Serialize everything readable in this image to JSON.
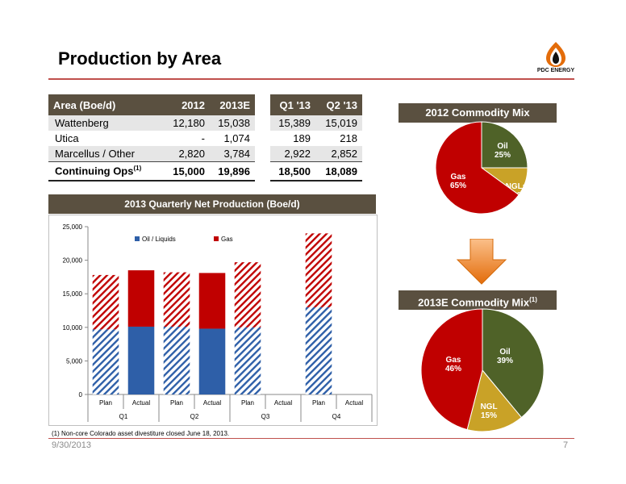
{
  "slide": {
    "title": "Production by Area",
    "logo_text": "PDC ENERGY",
    "footnote": "(1) Non-core Colorado asset divestiture closed June 18, 2013.",
    "date": "9/30/2013",
    "page": "7"
  },
  "table_annual": {
    "headers": [
      "Area (Boe/d)",
      "2012",
      "2013E"
    ],
    "rows": [
      [
        "Wattenberg",
        "12,180",
        "15,038"
      ],
      [
        "Utica",
        "-",
        "1,074"
      ],
      [
        "Marcellus / Other",
        "2,820",
        "3,784"
      ]
    ],
    "total": {
      "label": "Continuing Ops",
      "sup": "(1)",
      "v1": "15,000",
      "v2": "19,896"
    }
  },
  "table_quarterly": {
    "headers": [
      "Q1 '13",
      "Q2 '13"
    ],
    "rows": [
      [
        "15,389",
        "15,019"
      ],
      [
        "189",
        "218"
      ],
      [
        "2,922",
        "2,852"
      ]
    ],
    "total": {
      "v1": "18,500",
      "v2": "18,089"
    }
  },
  "chart_data": [
    {
      "type": "bar",
      "stacked": true,
      "title": "2013 Quarterly Net Production (Boe/d)",
      "categories": [
        "Plan",
        "Actual",
        "Plan",
        "Actual",
        "Plan",
        "Actual",
        "Plan",
        "Actual"
      ],
      "groups": [
        "Q1",
        "Q2",
        "Q3",
        "Q4"
      ],
      "series": [
        {
          "name": "Oil / Liquids",
          "color": "#2e5fa8",
          "values": [
            9700,
            10100,
            10100,
            9800,
            10000,
            0,
            13000,
            0
          ]
        },
        {
          "name": "Gas",
          "color": "#c00000",
          "values": [
            8100,
            8400,
            8100,
            8300,
            9700,
            0,
            11000,
            0
          ]
        }
      ],
      "pattern": [
        "hatched",
        "solid",
        "hatched",
        "solid",
        "hatched",
        "solid",
        "hatched",
        "solid"
      ],
      "ylim": [
        0,
        25000
      ],
      "yticks": [
        "0",
        "5,000",
        "10,000",
        "15,000",
        "20,000",
        "25,000"
      ],
      "legend": "top"
    },
    {
      "type": "pie",
      "title": "2012 Commodity Mix",
      "slices": [
        {
          "label": "Oil",
          "pct": "25%",
          "value": 25,
          "color": "#4f6228"
        },
        {
          "label": "NGLs",
          "pct": "10%",
          "value": 10,
          "color": "#c9a227"
        },
        {
          "label": "Gas",
          "pct": "65%",
          "value": 65,
          "color": "#c00000"
        }
      ]
    },
    {
      "type": "pie",
      "title": "2013E Commodity Mix",
      "title_sup": "(1)",
      "slices": [
        {
          "label": "Oil",
          "pct": "39%",
          "value": 39,
          "color": "#4f6228"
        },
        {
          "label": "NGL",
          "pct": "15%",
          "value": 15,
          "color": "#c9a227"
        },
        {
          "label": "Gas",
          "pct": "46%",
          "value": 46,
          "color": "#c00000"
        }
      ]
    }
  ]
}
